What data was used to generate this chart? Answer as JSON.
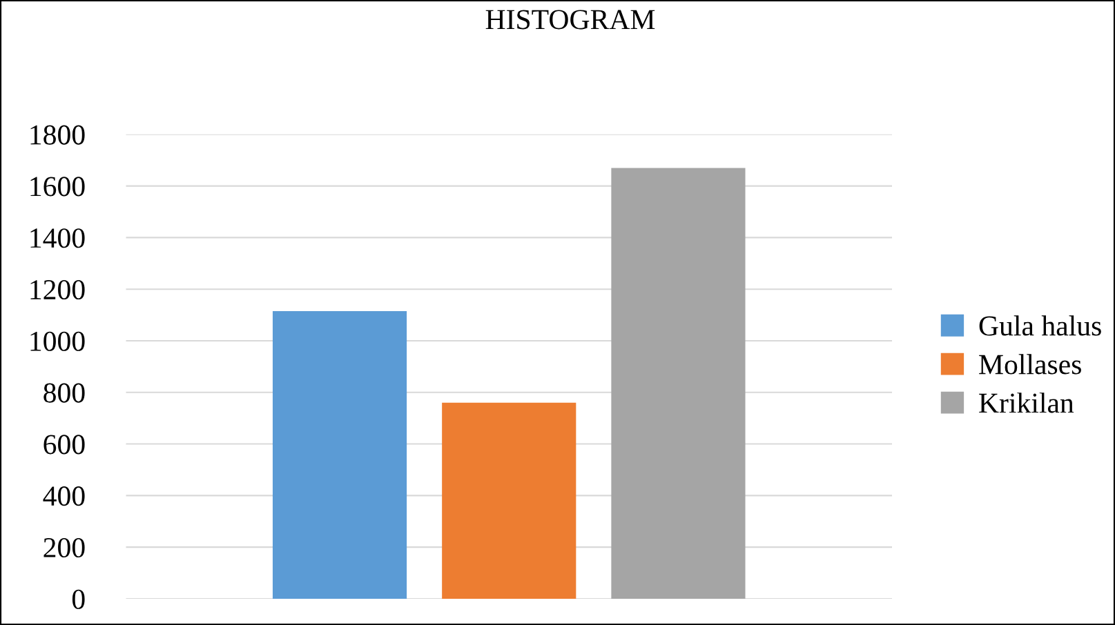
{
  "chart_data": {
    "type": "bar",
    "title": "HISTOGRAM",
    "categories": [
      null
    ],
    "series": [
      {
        "name": "Gula halus",
        "color": "#5b9bd5",
        "values": [
          1115
        ]
      },
      {
        "name": "Mollases",
        "color": "#ed7d31",
        "values": [
          760
        ]
      },
      {
        "name": "Krikilan",
        "color": "#a5a5a5",
        "values": [
          1670
        ]
      }
    ],
    "ylim": [
      0,
      1800
    ],
    "yticks": [
      0,
      200,
      400,
      600,
      800,
      1000,
      1200,
      1400,
      1600,
      1800
    ],
    "grid": "y",
    "legend": "right",
    "tick_labels": "y"
  }
}
